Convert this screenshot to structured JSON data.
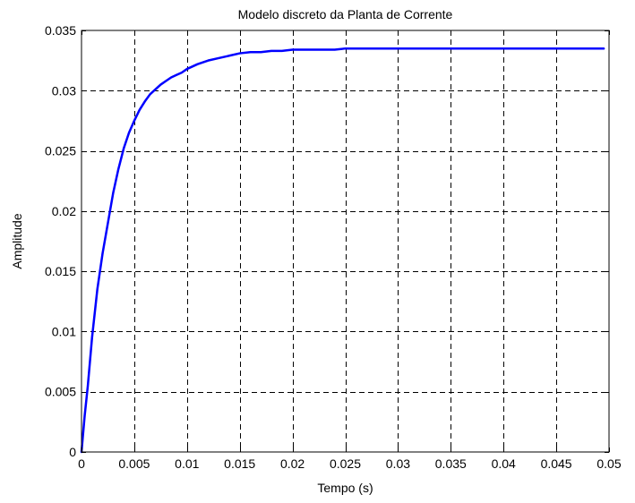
{
  "chart_data": {
    "type": "line",
    "title": "Modelo discreto da Planta de Corrente",
    "xlabel": "Tempo (s)",
    "ylabel": "Amplitude",
    "xlim": [
      0,
      0.05
    ],
    "ylim": [
      0,
      0.035
    ],
    "x_ticks": [
      "0",
      "0.005",
      "0.01",
      "0.015",
      "0.02",
      "0.025",
      "0.03",
      "0.035",
      "0.04",
      "0.045",
      "0.05"
    ],
    "y_ticks": [
      "0",
      "0.005",
      "0.01",
      "0.015",
      "0.02",
      "0.025",
      "0.03",
      "0.035"
    ],
    "grid": true,
    "line_color": "#0000ff",
    "series": [
      {
        "x": [
          0,
          0.0003,
          0.0006,
          0.001,
          0.0015,
          0.002,
          0.0025,
          0.003,
          0.0035,
          0.004,
          0.0045,
          0.005,
          0.0055,
          0.006,
          0.0065,
          0.007,
          0.0075,
          0.008,
          0.0085,
          0.009,
          0.0095,
          0.01,
          0.011,
          0.012,
          0.013,
          0.014,
          0.015,
          0.016,
          0.017,
          0.018,
          0.019,
          0.02,
          0.022,
          0.024,
          0.025,
          0.03,
          0.035,
          0.04,
          0.045,
          0.0495
        ],
        "y": [
          0,
          0.003,
          0.0055,
          0.0095,
          0.0135,
          0.0165,
          0.019,
          0.0215,
          0.0235,
          0.0252,
          0.0265,
          0.0275,
          0.0284,
          0.0291,
          0.0297,
          0.0301,
          0.0305,
          0.0308,
          0.0311,
          0.0313,
          0.0315,
          0.0318,
          0.0322,
          0.0325,
          0.0327,
          0.0329,
          0.0331,
          0.0332,
          0.0332,
          0.0333,
          0.0333,
          0.0334,
          0.0334,
          0.0334,
          0.0335,
          0.0335,
          0.0335,
          0.0335,
          0.0335,
          0.0335
        ]
      }
    ]
  }
}
